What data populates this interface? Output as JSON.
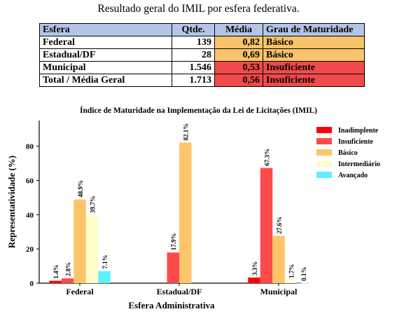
{
  "caption": "Resultado geral do IMIL por esfera federativa.",
  "table": {
    "headers": [
      "Esfera",
      "Qtde.",
      "Média",
      "Grau de Maturidade"
    ],
    "rows": [
      {
        "esfera": "Federal",
        "qtde": "139",
        "media": "0,82",
        "grau": "Básico",
        "color": "#f8c36a"
      },
      {
        "esfera": "Estadual/DF",
        "qtde": "28",
        "media": "0,69",
        "grau": "Básico",
        "color": "#f8c36a"
      },
      {
        "esfera": "Municipal",
        "qtde": "1.546",
        "media": "0,53",
        "grau": "Insuficiente",
        "color": "#f04a4a"
      },
      {
        "esfera": "Total / Média Geral",
        "qtde": "1.713",
        "media": "0,56",
        "grau": "Insuficiente",
        "color": "#f04a4a"
      }
    ],
    "header_color": "#b4c6e7"
  },
  "chart_data": {
    "type": "bar",
    "title": "Índice de Maturidade na Implementação da Lei de Licitações (IMIL)",
    "xlabel": "Esfera Administrativa",
    "ylabel": "Representatividade (%)",
    "ylim": [
      0,
      95
    ],
    "yticks": [
      0,
      20,
      40,
      60,
      80
    ],
    "grid": false,
    "legend_position": "top-right",
    "categories": [
      "Federal",
      "Estadual/DF",
      "Municipal"
    ],
    "series": [
      {
        "name": "Inadimplente",
        "color": "#ff0000",
        "values": [
          1.4,
          null,
          3.3
        ],
        "labels": [
          "1.4%",
          "",
          "3.3%"
        ]
      },
      {
        "name": "Insuficiente",
        "color": "#ff4a4a",
        "values": [
          2.8,
          17.9,
          67.3
        ],
        "labels": [
          "2.8%",
          "17.9%",
          "67.3%"
        ]
      },
      {
        "name": "Básico",
        "color": "#fdc56a",
        "values": [
          48.9,
          82.1,
          27.6
        ],
        "labels": [
          "48.9%",
          "82.1%",
          "27.6%"
        ]
      },
      {
        "name": "Intermediário",
        "color": "#fffdc8",
        "values": [
          39.7,
          null,
          1.7
        ],
        "labels": [
          "39.7%",
          "",
          "1.7%"
        ]
      },
      {
        "name": "Avançado",
        "color": "#5ff0ff",
        "values": [
          7.1,
          null,
          0.1
        ],
        "labels": [
          "7.1%",
          "",
          "0.1%"
        ]
      }
    ]
  }
}
